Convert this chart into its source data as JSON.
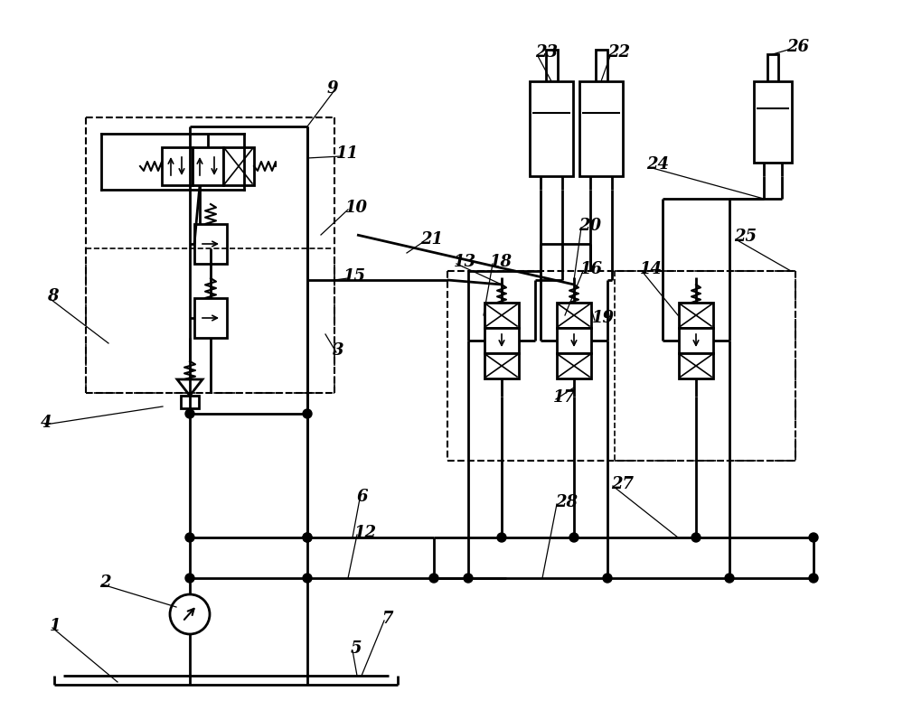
{
  "bg": "#ffffff",
  "lc": "#000000",
  "lw": 2.0,
  "labels": [
    [
      "1",
      55,
      693
    ],
    [
      "2",
      110,
      645
    ],
    [
      "3",
      368,
      388
    ],
    [
      "4",
      45,
      468
    ],
    [
      "5",
      388,
      718
    ],
    [
      "6",
      395,
      550
    ],
    [
      "7",
      422,
      685
    ],
    [
      "8",
      52,
      328
    ],
    [
      "9",
      362,
      98
    ],
    [
      "10",
      382,
      230
    ],
    [
      "11",
      372,
      170
    ],
    [
      "12",
      392,
      590
    ],
    [
      "13",
      502,
      290
    ],
    [
      "14",
      708,
      298
    ],
    [
      "15",
      380,
      306
    ],
    [
      "16",
      642,
      298
    ],
    [
      "17",
      612,
      440
    ],
    [
      "18",
      542,
      290
    ],
    [
      "19",
      655,
      352
    ],
    [
      "20",
      640,
      250
    ],
    [
      "21",
      465,
      265
    ],
    [
      "22",
      672,
      58
    ],
    [
      "23",
      592,
      58
    ],
    [
      "24",
      715,
      182
    ],
    [
      "25",
      812,
      262
    ],
    [
      "26",
      870,
      52
    ],
    [
      "27",
      676,
      536
    ],
    [
      "28",
      614,
      556
    ]
  ]
}
